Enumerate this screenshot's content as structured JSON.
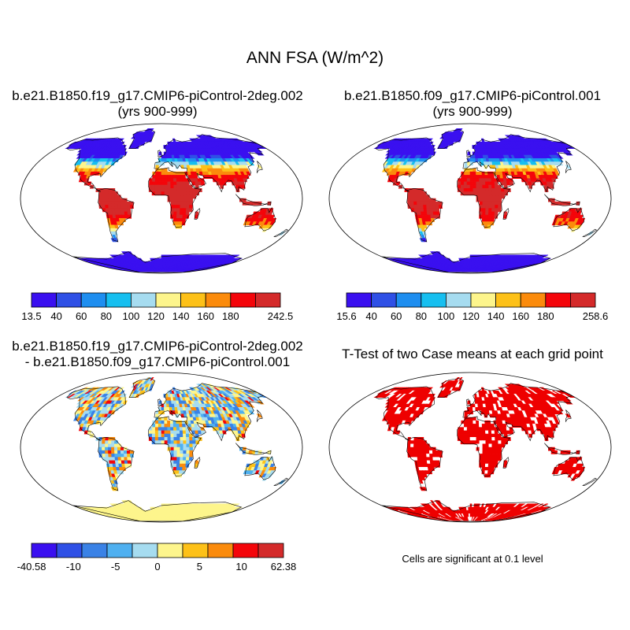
{
  "figure": {
    "title": "ANN FSA (W/m^2)",
    "panels": [
      {
        "id": "case1",
        "title_line1": "b.e21.B1850.f19_g17.CMIP6-piControl-2deg.002",
        "title_line2": "(yrs 900-999)",
        "colorbar": {
          "colors": [
            "#3a10f0",
            "#2f50e6",
            "#1e8ef0",
            "#16bff0",
            "#a6dcf0",
            "#fdf58c",
            "#fdc118",
            "#fb8b0c",
            "#f4050a",
            "#d42a2a"
          ],
          "tick_labels": [
            "13.5",
            "40",
            "60",
            "80",
            "100",
            "120",
            "140",
            "160",
            "180",
            "242.5"
          ]
        }
      },
      {
        "id": "case2",
        "title_line1": "b.e21.B1850.f09_g17.CMIP6-piControl.001",
        "title_line2": "(yrs 900-999)",
        "colorbar": {
          "colors": [
            "#3a10f0",
            "#2f50e6",
            "#1e8ef0",
            "#16bff0",
            "#a6dcf0",
            "#fdf58c",
            "#fdc118",
            "#fb8b0c",
            "#f4050a",
            "#d42a2a"
          ],
          "tick_labels": [
            "15.6",
            "40",
            "60",
            "80",
            "100",
            "120",
            "140",
            "160",
            "180",
            "258.6"
          ]
        }
      },
      {
        "id": "difference",
        "title_line1": "b.e21.B1850.f19_g17.CMIP6-piControl-2deg.002",
        "title_line2": "- b.e21.B1850.f09_g17.CMIP6-piControl.001",
        "colorbar": {
          "colors": [
            "#3a10f0",
            "#2f50e6",
            "#3a82e6",
            "#4fb0f0",
            "#a6dcf0",
            "#fdf58c",
            "#fdc118",
            "#fb8b0c",
            "#f4050a",
            "#d42a2a"
          ],
          "tick_labels": [
            "-40.58",
            "-10",
            "-5",
            "0",
            "5",
            "10",
            "62.38"
          ]
        }
      },
      {
        "id": "ttest",
        "title_line1": "T-Test of two Case means at each grid point",
        "note": "Cells are significant at 0.1 level"
      }
    ]
  }
}
